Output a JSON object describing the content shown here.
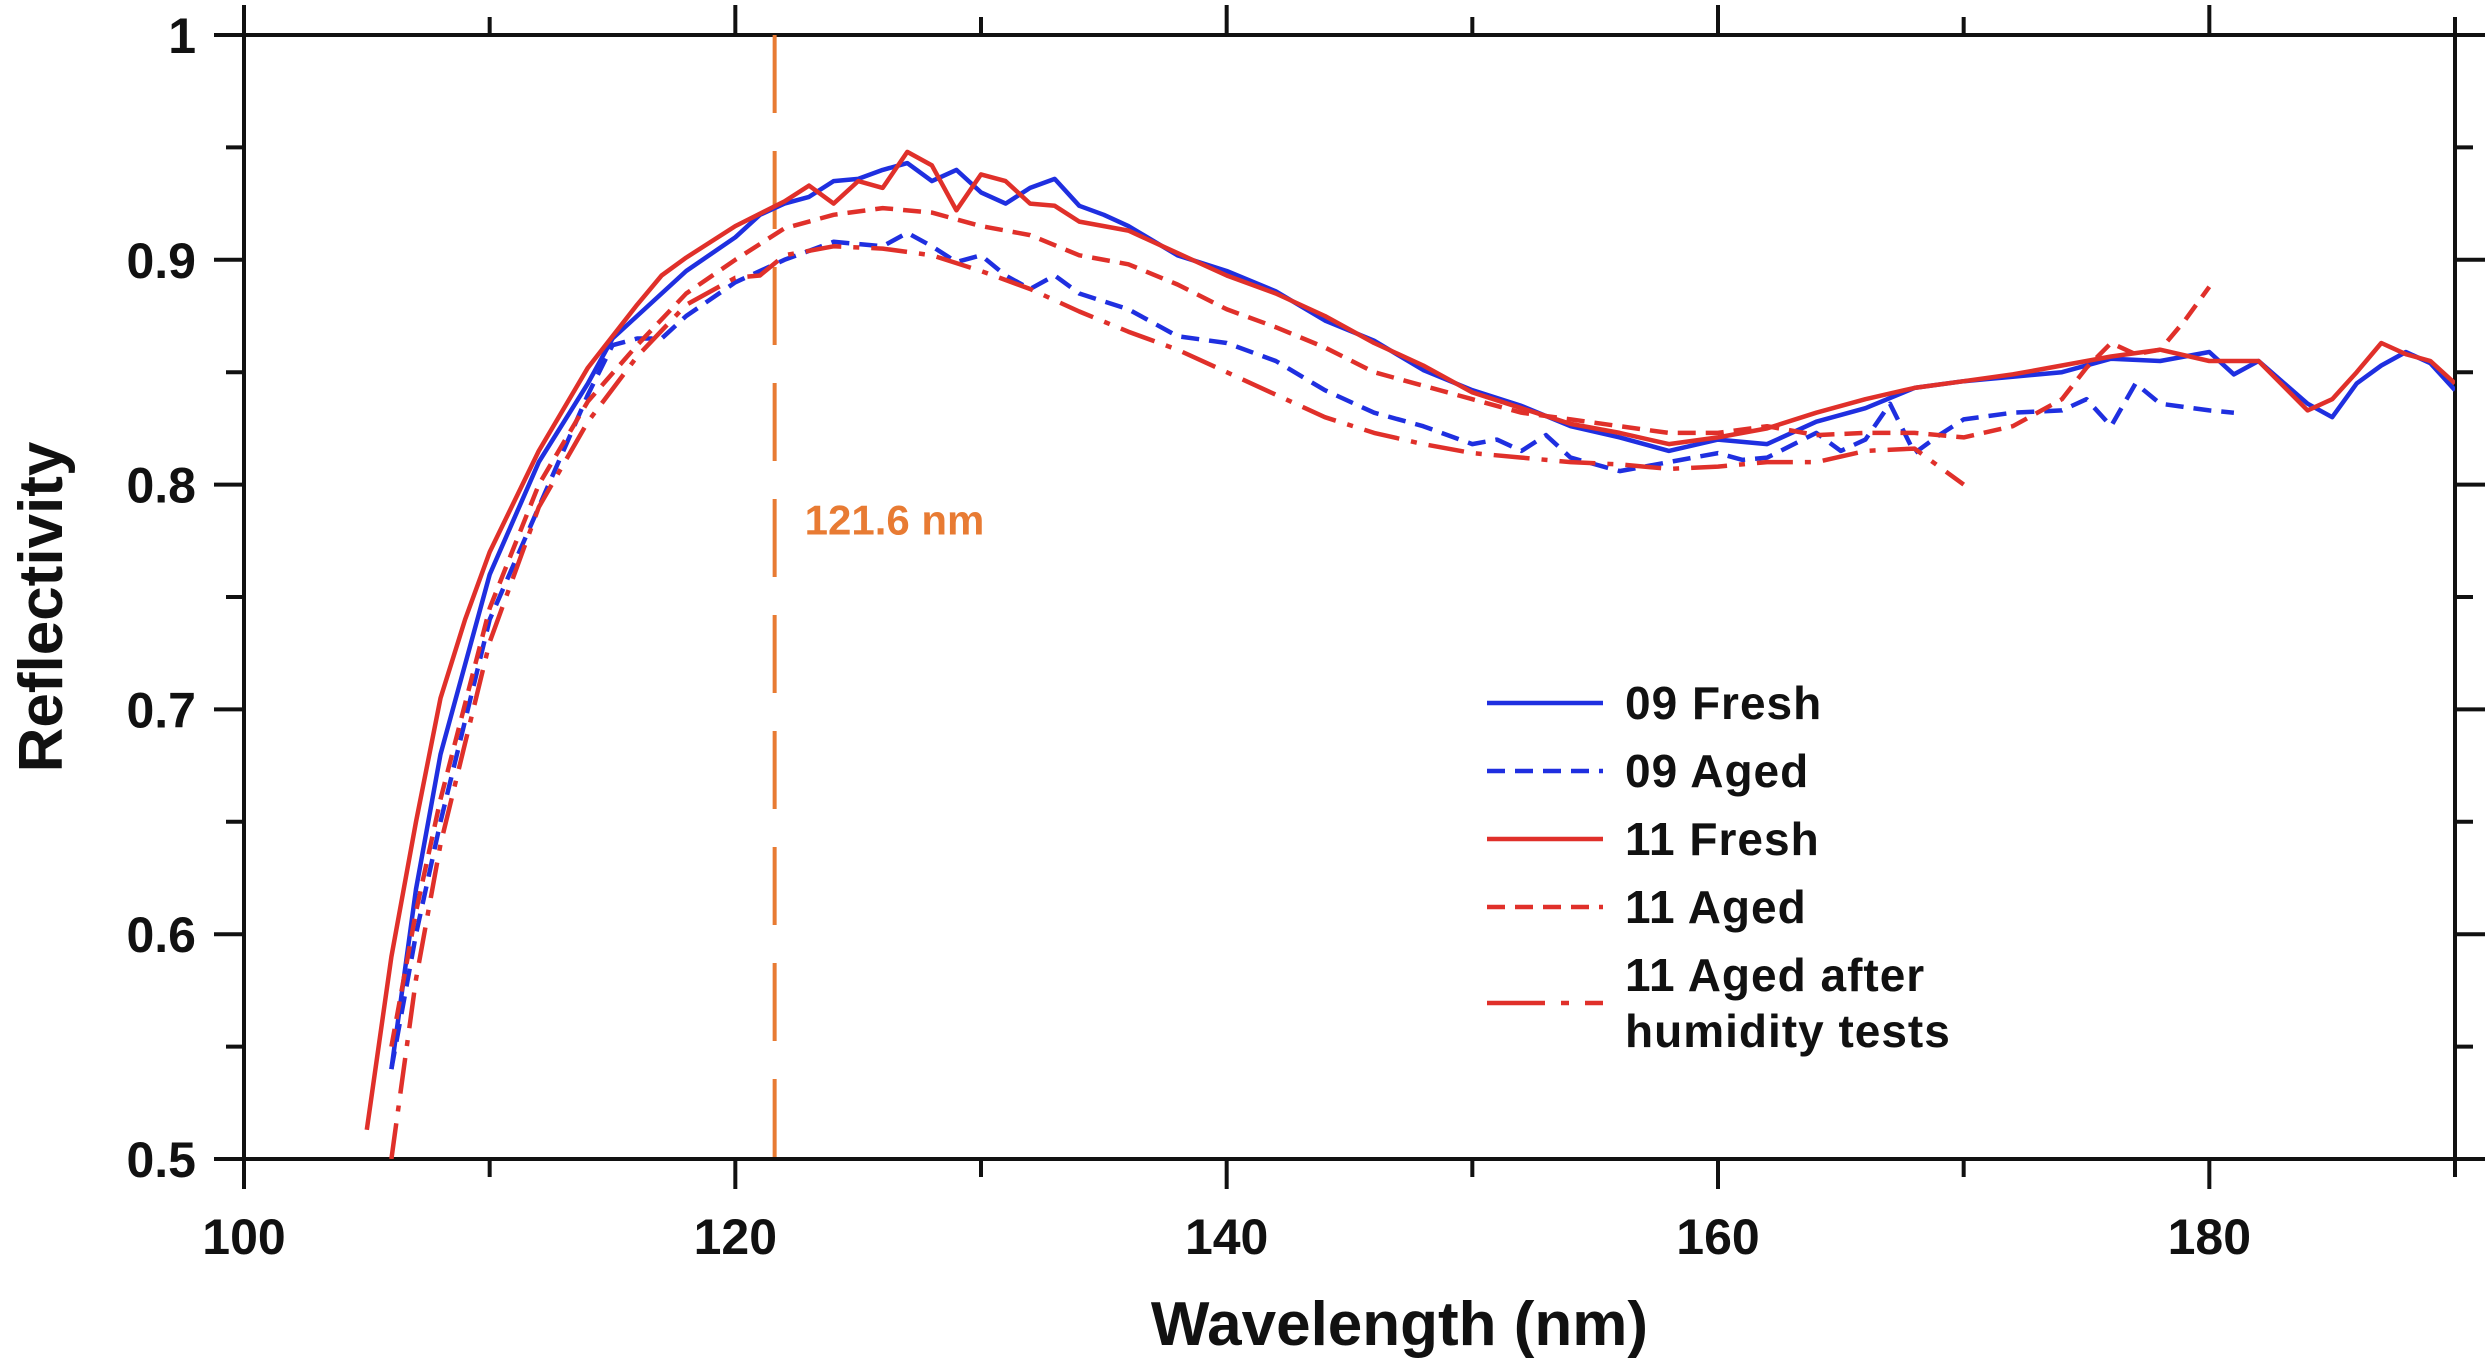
{
  "chart_data": {
    "type": "line",
    "title": "",
    "xlabel": "Wavelength (nm)",
    "ylabel": "Reflectivity",
    "xlim": [
      100,
      190
    ],
    "ylim": [
      0.5,
      1.0
    ],
    "x_ticks": [
      100,
      120,
      140,
      160,
      180
    ],
    "x_tick_labels": [
      "100",
      "120",
      "140",
      "160",
      "180"
    ],
    "y_ticks": [
      0.5,
      0.6,
      0.7,
      0.8,
      0.9,
      1.0
    ],
    "y_tick_labels": [
      "0.5",
      "0.6",
      "0.7",
      "0.8",
      "0.9",
      "1"
    ],
    "grid": false,
    "legend_position": "center-right",
    "annotation": {
      "x": 121.6,
      "label": "121.6 nm",
      "color": "#E87B33"
    },
    "series": [
      {
        "name": "09 Fresh",
        "color": "#1F2FE0",
        "dash": "solid",
        "x": [
          106,
          107,
          108,
          110,
          112,
          114,
          115,
          116,
          118,
          120,
          121,
          122,
          123,
          124,
          125,
          126,
          127,
          128,
          129,
          130,
          131,
          132,
          133,
          134,
          135,
          136,
          138,
          140,
          142,
          144,
          146,
          148,
          150,
          152,
          154,
          156,
          158,
          160,
          162,
          164,
          166,
          168,
          170,
          172,
          174,
          176,
          178,
          180,
          181,
          182,
          184,
          185,
          186,
          187,
          188,
          189,
          190
        ],
        "values": [
          0.54,
          0.62,
          0.68,
          0.76,
          0.81,
          0.845,
          0.865,
          0.875,
          0.895,
          0.91,
          0.92,
          0.925,
          0.928,
          0.935,
          0.936,
          0.94,
          0.943,
          0.935,
          0.94,
          0.93,
          0.925,
          0.932,
          0.936,
          0.924,
          0.92,
          0.915,
          0.902,
          0.895,
          0.886,
          0.873,
          0.864,
          0.851,
          0.842,
          0.835,
          0.826,
          0.821,
          0.815,
          0.82,
          0.818,
          0.828,
          0.834,
          0.843,
          0.846,
          0.848,
          0.85,
          0.856,
          0.855,
          0.859,
          0.849,
          0.855,
          0.836,
          0.83,
          0.845,
          0.853,
          0.859,
          0.854,
          0.842
        ]
      },
      {
        "name": "09 Aged",
        "color": "#1F2FE0",
        "dash": "dashed",
        "x": [
          106,
          107,
          108,
          110,
          112,
          114,
          115,
          116,
          117,
          118,
          120,
          122,
          124,
          126,
          127,
          128,
          129,
          130,
          131,
          132,
          133,
          134,
          136,
          138,
          140,
          142,
          144,
          146,
          148,
          150,
          151,
          152,
          153,
          154,
          156,
          158,
          160,
          161,
          162,
          164,
          165,
          166,
          167,
          168,
          169,
          170,
          172,
          174,
          175,
          176,
          177,
          178,
          180,
          181
        ],
        "values": [
          0.54,
          0.6,
          0.65,
          0.74,
          0.79,
          0.84,
          0.862,
          0.865,
          0.865,
          0.875,
          0.89,
          0.9,
          0.908,
          0.906,
          0.912,
          0.906,
          0.899,
          0.902,
          0.893,
          0.887,
          0.893,
          0.885,
          0.878,
          0.866,
          0.863,
          0.855,
          0.842,
          0.832,
          0.826,
          0.818,
          0.82,
          0.815,
          0.822,
          0.812,
          0.806,
          0.81,
          0.814,
          0.811,
          0.812,
          0.823,
          0.815,
          0.82,
          0.836,
          0.814,
          0.822,
          0.829,
          0.832,
          0.833,
          0.838,
          0.826,
          0.845,
          0.836,
          0.833,
          0.832
        ]
      },
      {
        "name": "11 Fresh",
        "color": "#E0302A",
        "dash": "solid",
        "x": [
          105,
          106,
          107,
          108,
          109,
          110,
          112,
          114,
          116,
          117,
          118,
          120,
          122,
          123,
          124,
          125,
          126,
          127,
          128,
          129,
          130,
          131,
          132,
          133,
          134,
          136,
          138,
          140,
          142,
          144,
          146,
          148,
          150,
          152,
          154,
          156,
          158,
          160,
          162,
          164,
          166,
          168,
          170,
          172,
          174,
          176,
          178,
          180,
          182,
          184,
          185,
          186,
          187,
          188,
          189,
          190
        ],
        "values": [
          0.513,
          0.59,
          0.65,
          0.705,
          0.74,
          0.77,
          0.815,
          0.852,
          0.88,
          0.893,
          0.901,
          0.915,
          0.926,
          0.933,
          0.925,
          0.935,
          0.932,
          0.948,
          0.942,
          0.922,
          0.938,
          0.935,
          0.925,
          0.924,
          0.917,
          0.913,
          0.903,
          0.893,
          0.885,
          0.875,
          0.863,
          0.853,
          0.841,
          0.834,
          0.827,
          0.823,
          0.818,
          0.821,
          0.825,
          0.832,
          0.838,
          0.843,
          0.846,
          0.849,
          0.853,
          0.857,
          0.86,
          0.855,
          0.855,
          0.833,
          0.838,
          0.85,
          0.863,
          0.858,
          0.855,
          0.845
        ]
      },
      {
        "name": "11 Aged",
        "color": "#E0302A",
        "dash": "dashed",
        "x": [
          106,
          107,
          108,
          110,
          112,
          114,
          116,
          118,
          120,
          122,
          124,
          126,
          128,
          130,
          132,
          134,
          136,
          138,
          140,
          142,
          144,
          146,
          148,
          150,
          152,
          154,
          156,
          158,
          160,
          162,
          164,
          166,
          168,
          170,
          172,
          174,
          175,
          176,
          177,
          178,
          179,
          180
        ],
        "values": [
          0.55,
          0.61,
          0.66,
          0.745,
          0.8,
          0.837,
          0.862,
          0.885,
          0.9,
          0.914,
          0.92,
          0.923,
          0.921,
          0.915,
          0.911,
          0.902,
          0.898,
          0.889,
          0.878,
          0.87,
          0.861,
          0.85,
          0.844,
          0.838,
          0.832,
          0.829,
          0.826,
          0.823,
          0.823,
          0.826,
          0.822,
          0.823,
          0.823,
          0.821,
          0.826,
          0.838,
          0.852,
          0.863,
          0.858,
          0.86,
          0.873,
          0.888
        ]
      },
      {
        "name": "11 Aged after\nhumidity tests",
        "color": "#E0302A",
        "dash": "dashdot",
        "x": [
          106,
          107,
          108,
          110,
          112,
          114,
          116,
          118,
          120,
          121,
          122,
          124,
          126,
          128,
          130,
          132,
          134,
          136,
          138,
          140,
          142,
          144,
          146,
          148,
          150,
          152,
          154,
          156,
          158,
          160,
          162,
          164,
          166,
          168,
          169,
          170
        ],
        "values": [
          0.5,
          0.58,
          0.64,
          0.73,
          0.79,
          0.828,
          0.857,
          0.88,
          0.892,
          0.893,
          0.902,
          0.906,
          0.905,
          0.902,
          0.895,
          0.887,
          0.877,
          0.868,
          0.86,
          0.85,
          0.84,
          0.83,
          0.823,
          0.818,
          0.814,
          0.812,
          0.81,
          0.809,
          0.807,
          0.808,
          0.81,
          0.81,
          0.815,
          0.816,
          0.808,
          0.8
        ]
      }
    ]
  }
}
